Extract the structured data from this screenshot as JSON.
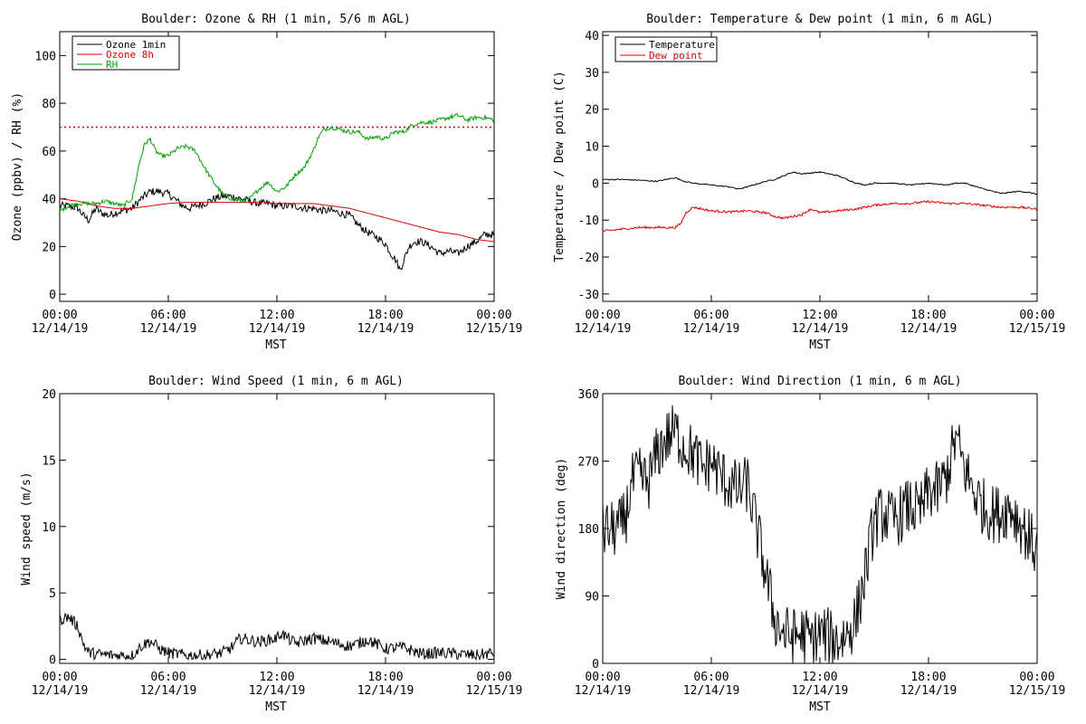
{
  "x_axis": {
    "ticks": [
      0,
      6,
      12,
      18,
      24
    ],
    "tick_labels": [
      [
        "00:00",
        "12/14/19"
      ],
      [
        "06:00",
        "12/14/19"
      ],
      [
        "12:00",
        "12/14/19"
      ],
      [
        "18:00",
        "12/14/19"
      ],
      [
        "00:00",
        "12/15/19"
      ]
    ],
    "label": "MST"
  },
  "colors": {
    "black": "#000000",
    "red": "#e00000",
    "green": "#00a000"
  },
  "chart_data": [
    {
      "id": "ozone_rh",
      "type": "line",
      "title": "Boulder: Ozone & RH (1 min, 5/6 m AGL)",
      "xlabel": "MST",
      "ylabel": "Ozone (ppbv) / RH (%)",
      "xlim": [
        0,
        24
      ],
      "ylim": [
        -3,
        110
      ],
      "yticks": [
        0,
        20,
        40,
        60,
        80,
        100
      ],
      "legend": "top-left",
      "reference_line": {
        "y": 70,
        "color": "#e00000",
        "style": "dotted"
      },
      "series": [
        {
          "name": "Ozone 1min",
          "color": "#000000",
          "jitter": 1.6,
          "x": [
            0,
            0.5,
            1,
            1.3,
            1.6,
            2,
            2.3,
            2.7,
            3,
            3.5,
            4,
            4.5,
            5,
            5.5,
            6,
            6.5,
            6.8,
            7.2,
            7.5,
            8,
            8.5,
            9,
            9.5,
            10,
            10.5,
            11,
            11.5,
            12,
            12.5,
            13,
            13.5,
            14,
            14.5,
            15,
            15.5,
            16,
            16.5,
            17,
            17.5,
            18,
            18.3,
            18.6,
            18.8,
            19,
            19.3,
            19.6,
            20,
            20.5,
            21,
            21.5,
            22,
            22.5,
            23,
            23.5,
            24
          ],
          "y": [
            37,
            37,
            36,
            33,
            31,
            36,
            34,
            33,
            34,
            35,
            36,
            40,
            43,
            43,
            42,
            39,
            37,
            36,
            37,
            38,
            40,
            41,
            41,
            40,
            39,
            38,
            38,
            37,
            37,
            37,
            36,
            36,
            35,
            35,
            34,
            33,
            29,
            26,
            24,
            21,
            17,
            14,
            10,
            14,
            20,
            22,
            22,
            20,
            17,
            18,
            17,
            20,
            22,
            25,
            25
          ]
        },
        {
          "name": "Ozone 8h",
          "color": "#e00000",
          "jitter": 0,
          "x": [
            0,
            1,
            2,
            3,
            4,
            5,
            6,
            7,
            8,
            9,
            10,
            11,
            12,
            13,
            14,
            15,
            16,
            17,
            18,
            19,
            20,
            21,
            22,
            23,
            24
          ],
          "y": [
            40,
            39,
            37,
            36,
            36,
            37,
            38,
            38.5,
            38.5,
            38.5,
            38.5,
            38.5,
            38,
            38,
            38,
            37,
            36,
            34,
            32,
            30,
            28,
            26,
            25,
            23,
            22
          ]
        },
        {
          "name": "RH",
          "color": "#00a000",
          "jitter": 0.9,
          "x": [
            0,
            0.5,
            1,
            1.5,
            2,
            2.5,
            3,
            3.5,
            4,
            4.4,
            4.7,
            5,
            5.3,
            5.6,
            6,
            6.5,
            7,
            7.5,
            8,
            8.5,
            9,
            9.5,
            10,
            10.5,
            11,
            11.5,
            12,
            12.5,
            13,
            13.5,
            14,
            14.3,
            14.6,
            15,
            15.5,
            16,
            16.5,
            17,
            17.5,
            18,
            18.5,
            19,
            19.5,
            20,
            20.5,
            21,
            21.5,
            22,
            22.5,
            23,
            23.5,
            24
          ],
          "y": [
            35,
            37,
            38,
            38,
            38,
            39,
            38,
            37,
            40,
            55,
            63,
            65,
            60,
            58,
            58,
            61,
            62,
            60,
            53,
            47,
            42,
            40,
            39,
            40,
            44,
            47,
            43,
            45,
            50,
            53,
            60,
            66,
            69,
            70,
            69,
            68,
            68,
            65,
            66,
            65,
            68,
            68,
            71,
            72,
            72,
            73,
            74,
            75,
            73,
            74,
            74,
            73
          ]
        }
      ]
    },
    {
      "id": "temp_dew",
      "type": "line",
      "title": "Boulder: Temperature & Dew point (1 min, 6 m AGL)",
      "xlabel": "MST",
      "ylabel": "Temperature / Dew point (C)",
      "xlim": [
        0,
        24
      ],
      "ylim": [
        -32,
        41
      ],
      "yticks": [
        -30,
        -20,
        -10,
        0,
        10,
        20,
        30,
        40
      ],
      "legend": "top-left",
      "series": [
        {
          "name": "Temperature",
          "color": "#000000",
          "jitter": 0.15,
          "x": [
            0,
            1,
            2,
            3,
            4,
            4.5,
            5,
            6,
            7,
            7.5,
            8,
            9,
            9.5,
            10,
            10.5,
            11,
            12,
            13,
            13.5,
            14,
            14.5,
            15,
            16,
            17,
            18,
            19,
            19.5,
            20,
            21,
            22,
            23,
            23.5,
            24
          ],
          "y": [
            1,
            1,
            0.8,
            0.5,
            1.5,
            0.5,
            0,
            -0.5,
            -1,
            -1.6,
            -1,
            0.5,
            1,
            2,
            3,
            2.5,
            3,
            2,
            1,
            0,
            -0.5,
            0,
            0,
            -0.5,
            0,
            -0.5,
            0,
            0,
            -1.5,
            -2.8,
            -2.2,
            -2.5,
            -3
          ]
        },
        {
          "name": "Dew point",
          "color": "#e00000",
          "jitter": 0.3,
          "x": [
            0,
            1,
            2,
            3,
            4,
            4.3,
            4.6,
            5,
            6,
            7,
            8,
            9,
            9.5,
            10,
            10.5,
            11,
            11.5,
            12,
            13,
            14,
            15,
            16,
            17,
            18,
            19,
            20,
            21,
            22,
            23,
            24
          ],
          "y": [
            -13,
            -12.5,
            -12,
            -12,
            -12,
            -11,
            -8,
            -6.5,
            -7.5,
            -7.8,
            -7.5,
            -8,
            -9,
            -9.5,
            -9,
            -8.5,
            -7,
            -8,
            -7.5,
            -7,
            -6,
            -5.5,
            -5.5,
            -5,
            -5.5,
            -5.5,
            -6,
            -6.5,
            -6.5,
            -7
          ]
        }
      ]
    },
    {
      "id": "wind_speed",
      "type": "line",
      "title": "Boulder: Wind Speed (1 min, 6 m AGL)",
      "xlabel": "MST",
      "ylabel": "Wind speed (m/s)",
      "xlim": [
        0,
        24
      ],
      "ylim": [
        -0.3,
        20
      ],
      "yticks": [
        0,
        5,
        10,
        15,
        20
      ],
      "series": [
        {
          "name": "",
          "color": "#000000",
          "jitter": 0.45,
          "min": 0,
          "x": [
            0,
            0.5,
            1,
            1.3,
            1.6,
            2,
            3,
            4,
            4.5,
            5,
            5.5,
            6,
            7,
            8,
            9,
            9.5,
            10,
            11,
            12,
            12.2,
            13,
            14,
            15,
            16,
            16.5,
            17,
            18,
            19,
            20,
            21,
            22,
            23,
            24
          ],
          "y": [
            3,
            3.2,
            2.5,
            1.2,
            0.5,
            0.4,
            0.3,
            0.3,
            1,
            1.4,
            0.8,
            0.5,
            0.3,
            0.3,
            0.5,
            0.9,
            1.6,
            1.3,
            1.6,
            2,
            1.2,
            1.6,
            1.3,
            1,
            1.2,
            1.5,
            0.8,
            0.9,
            0.4,
            0.5,
            0.4,
            0.3,
            0.5
          ]
        }
      ]
    },
    {
      "id": "wind_dir",
      "type": "line",
      "title": "Boulder: Wind Direction (1 min, 6 m AGL)",
      "xlabel": "MST",
      "ylabel": "Wind direction (deg)",
      "xlim": [
        0,
        24
      ],
      "ylim": [
        0,
        360
      ],
      "yticks": [
        0,
        90,
        180,
        270,
        360
      ],
      "series": [
        {
          "name": "",
          "color": "#000000",
          "jitter": 40,
          "min": 0,
          "max": 360,
          "x": [
            0,
            0.5,
            1,
            1.3,
            1.6,
            2,
            2.5,
            3,
            3.5,
            4,
            4.5,
            5,
            5.5,
            6,
            6.5,
            7,
            7.5,
            8,
            8.5,
            9,
            9.5,
            10,
            10.5,
            11,
            11.5,
            12,
            12.5,
            13,
            13.5,
            14,
            14.5,
            15,
            15.5,
            16,
            16.5,
            17,
            17.5,
            18,
            18.5,
            19,
            19.5,
            20,
            20.5,
            21,
            21.5,
            22,
            22.5,
            23,
            23.5,
            24
          ],
          "y": [
            178,
            178,
            182,
            200,
            240,
            250,
            240,
            280,
            300,
            310,
            290,
            280,
            260,
            270,
            250,
            240,
            230,
            240,
            180,
            120,
            60,
            40,
            35,
            40,
            30,
            40,
            35,
            30,
            40,
            60,
            120,
            190,
            200,
            190,
            200,
            210,
            200,
            230,
            230,
            250,
            300,
            260,
            230,
            210,
            200,
            200,
            210,
            190,
            170,
            150
          ]
        }
      ]
    }
  ]
}
